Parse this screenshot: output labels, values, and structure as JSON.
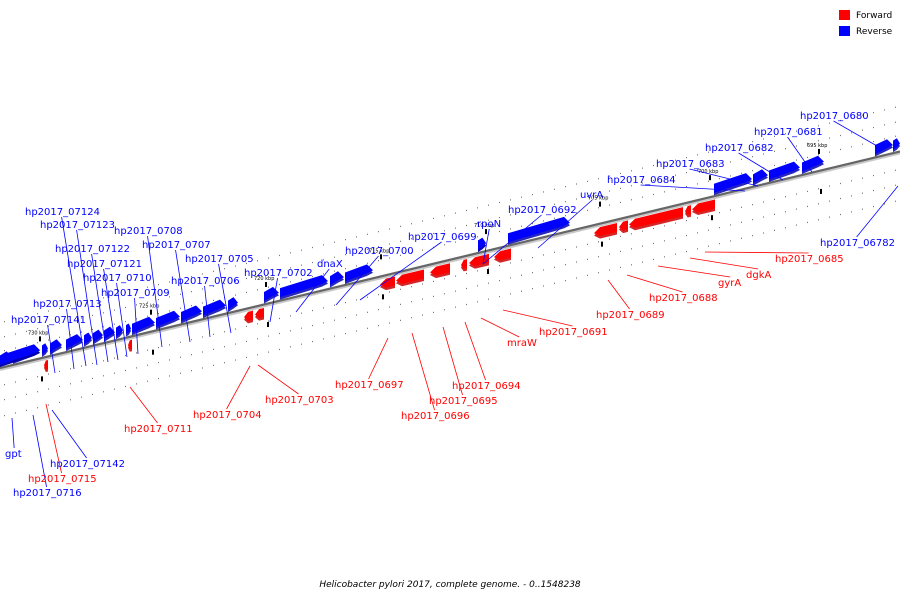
{
  "legend": [
    {
      "label": "Forward",
      "color": "#ff0000"
    },
    {
      "label": "Reverse",
      "color": "#0000ff"
    }
  ],
  "caption": "Helicobacter pylori 2017, complete genome. - 0..1548238",
  "colors": {
    "forward": "#ff0000",
    "forward_dark": "#cc0000",
    "reverse": "#0000ff",
    "reverse_dark": "#0000b0",
    "backbone": "#666666"
  },
  "ticks": [
    {
      "label": "730 kbp",
      "kbp": 730
    },
    {
      "label": "725 kbp",
      "kbp": 725
    },
    {
      "label": "720 kbp",
      "kbp": 720
    },
    {
      "label": "715 kbp",
      "kbp": 715
    },
    {
      "label": "710 kbp",
      "kbp": 710
    },
    {
      "label": "705 kbp",
      "kbp": 705
    },
    {
      "label": "700 kbp",
      "kbp": 700
    },
    {
      "label": "695 kbp",
      "kbp": 695
    }
  ],
  "genes": [
    {
      "name": "hp2017_0680",
      "strand": "reverse"
    },
    {
      "name": "hp2017_0681",
      "strand": "reverse"
    },
    {
      "name": "hp2017_0682",
      "strand": "reverse"
    },
    {
      "name": "hp2017_0683",
      "strand": "reverse"
    },
    {
      "name": "hp2017_0684",
      "strand": "reverse"
    },
    {
      "name": "hp2017_06782",
      "strand": "reverse"
    },
    {
      "name": "uvrA",
      "strand": "reverse"
    },
    {
      "name": "hp2017_0692",
      "strand": "reverse"
    },
    {
      "name": "rpoN",
      "strand": "reverse"
    },
    {
      "name": "hp2017_0699",
      "strand": "reverse"
    },
    {
      "name": "hp2017_0700",
      "strand": "reverse"
    },
    {
      "name": "dnaX",
      "strand": "reverse"
    },
    {
      "name": "hp2017_0702",
      "strand": "reverse"
    },
    {
      "name": "hp2017_0705",
      "strand": "reverse"
    },
    {
      "name": "hp2017_0706",
      "strand": "reverse"
    },
    {
      "name": "hp2017_0707",
      "strand": "reverse"
    },
    {
      "name": "hp2017_0708",
      "strand": "reverse"
    },
    {
      "name": "hp2017_0709",
      "strand": "reverse"
    },
    {
      "name": "hp2017_0710",
      "strand": "reverse"
    },
    {
      "name": "hp2017_07121",
      "strand": "reverse"
    },
    {
      "name": "hp2017_07122",
      "strand": "reverse"
    },
    {
      "name": "hp2017_07123",
      "strand": "reverse"
    },
    {
      "name": "hp2017_07124",
      "strand": "reverse"
    },
    {
      "name": "hp2017_0713",
      "strand": "reverse"
    },
    {
      "name": "hp2017_07141",
      "strand": "reverse"
    },
    {
      "name": "hp2017_07142",
      "strand": "reverse"
    },
    {
      "name": "gpt",
      "strand": "reverse"
    },
    {
      "name": "hp2017_0716",
      "strand": "reverse"
    },
    {
      "name": "hp2017_0685",
      "strand": "forward"
    },
    {
      "name": "dgkA",
      "strand": "forward"
    },
    {
      "name": "gyrA",
      "strand": "forward"
    },
    {
      "name": "hp2017_0688",
      "strand": "forward"
    },
    {
      "name": "hp2017_0689",
      "strand": "forward"
    },
    {
      "name": "hp2017_0691",
      "strand": "forward"
    },
    {
      "name": "mraW",
      "strand": "forward"
    },
    {
      "name": "hp2017_0694",
      "strand": "forward"
    },
    {
      "name": "hp2017_0695",
      "strand": "forward"
    },
    {
      "name": "hp2017_0696",
      "strand": "forward"
    },
    {
      "name": "hp2017_0697",
      "strand": "forward"
    },
    {
      "name": "hp2017_0703",
      "strand": "forward"
    },
    {
      "name": "hp2017_0704",
      "strand": "forward"
    },
    {
      "name": "hp2017_0711",
      "strand": "forward"
    },
    {
      "name": "hp2017_0715",
      "strand": "forward"
    }
  ]
}
